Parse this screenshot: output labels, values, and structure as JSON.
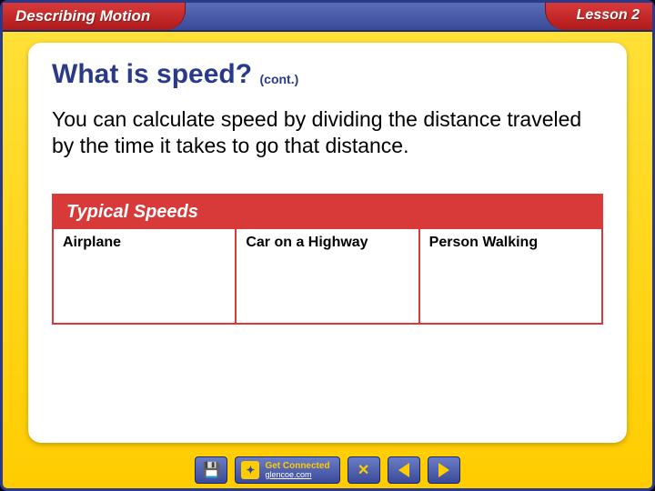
{
  "header": {
    "chapter_title": "Describing Motion",
    "lesson_label": "Lesson 2"
  },
  "content": {
    "heading": "What is speed?",
    "heading_suffix": "(cont.)",
    "body": "You can calculate speed by dividing the distance traveled by the time it takes to go that distance.",
    "heading_color": "#2a3a8a"
  },
  "table": {
    "title": "Typical Speeds",
    "border_color": "#d83a3a",
    "columns": [
      {
        "label": "Airplane"
      },
      {
        "label": "Car on a Highway"
      },
      {
        "label": "Person Walking"
      }
    ]
  },
  "nav": {
    "disk_label": "💾",
    "connect_label": "Get Connected",
    "connect_url": "glencoe.com",
    "close_label": "✕",
    "prev_label": "◀",
    "next_label": "▶"
  },
  "colors": {
    "frame_yellow": "#ffcc00",
    "frame_border": "#2a3a8a",
    "header_blue": "#3a4a9a",
    "accent_red": "#d83a3a",
    "white": "#ffffff"
  }
}
